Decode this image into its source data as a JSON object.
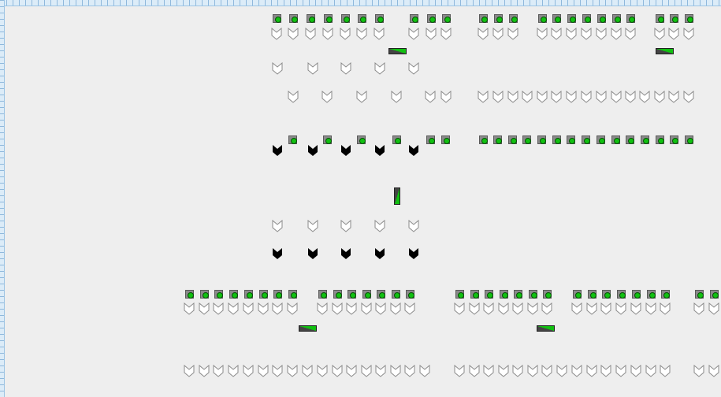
{
  "canvas": {
    "background": "#eeeeee",
    "ruler_color": "#dcecf8",
    "icons": {
      "led": "green-indicator-light",
      "chevron_outline": "chevron-down-outline",
      "chevron_filled": "chevron-down-filled",
      "slider_h": "horizontal-slider",
      "slider_v": "vertical-slider"
    },
    "colors": {
      "led_on": "#11c011",
      "slider_fill": "#11c011",
      "slider_track": "#444444",
      "chevron_filled": "#000000"
    }
  }
}
